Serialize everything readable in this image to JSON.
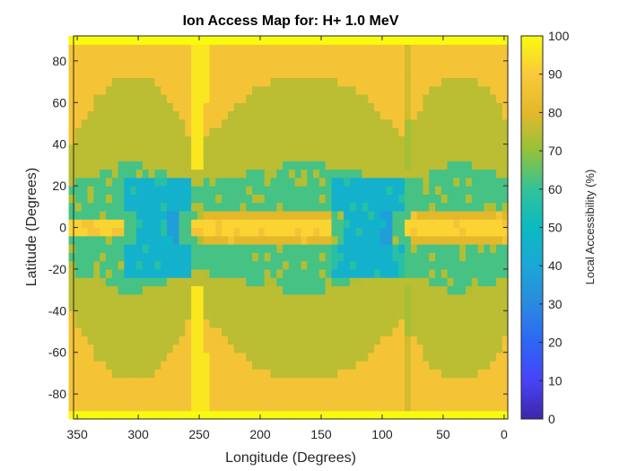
{
  "chart_data": {
    "type": "heatmap",
    "title": "Ion Access Map for: H+ 1.0 MeV",
    "xlabel": "Longitude (Degrees)",
    "ylabel": "Latitude (Degrees)",
    "colorbar_label": "Local Accessibility (%)",
    "xlim": [
      0,
      350
    ],
    "x_reversed": true,
    "ylim": [
      -90,
      90
    ],
    "clim": [
      0,
      100
    ],
    "colormap": "parula",
    "xticks": [
      350,
      300,
      250,
      200,
      150,
      100,
      50,
      0
    ],
    "yticks": [
      -80,
      -60,
      -40,
      -20,
      0,
      20,
      40,
      60,
      80
    ],
    "cticks": [
      0,
      10,
      20,
      30,
      40,
      50,
      60,
      70,
      80,
      90,
      100
    ],
    "grid_resolution_deg": {
      "longitude": 5,
      "latitude": 4
    },
    "value_levels": {
      "polar_cap": 100,
      "high_latitude": 87,
      "mid_latitude": 75,
      "low_latitude": 62,
      "equatorial_minimum": 45,
      "equatorial_deep_minimum": 37,
      "equatorial_spine": 92,
      "gap_column": 96
    }
  }
}
